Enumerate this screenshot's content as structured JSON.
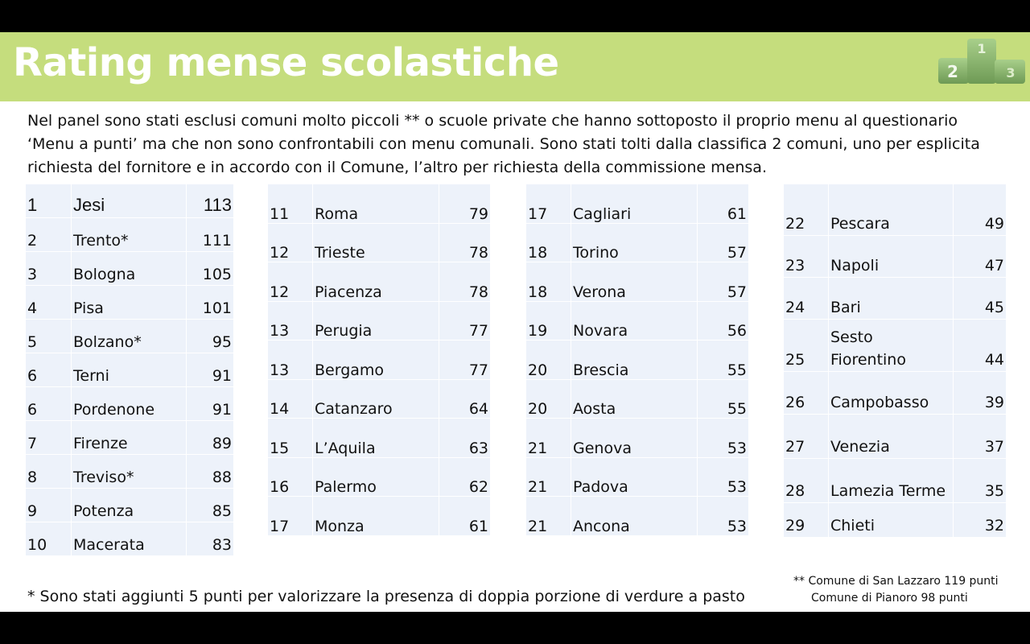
{
  "header": {
    "title": "Rating mense scolastiche",
    "podium": [
      "1",
      "2",
      "3"
    ]
  },
  "intro": "Nel panel sono stati esclusi comuni molto piccoli ** o scuole private che hanno sottoposto il proprio menu al questionario ‘Menu a punti’ ma  che non sono confrontabili con menu comunali. Sono stati tolti dalla classifica 2 comuni, uno per esplicita richiesta del fornitore e in accordo con il Comune, l’altro per richiesta della commissione mensa.",
  "tables": [
    [
      [
        "1",
        "Jesi",
        "113"
      ],
      [
        "2",
        "Trento*",
        "111"
      ],
      [
        "3",
        "Bologna",
        "105"
      ],
      [
        "4",
        "Pisa",
        "101"
      ],
      [
        "5",
        "Bolzano*",
        "95"
      ],
      [
        "6",
        "Terni",
        "91"
      ],
      [
        "6",
        "Pordenone",
        "91"
      ],
      [
        "7",
        "Firenze",
        "89"
      ],
      [
        "8",
        "Treviso*",
        "88"
      ],
      [
        "9",
        "Potenza",
        "85"
      ],
      [
        "10",
        "Macerata",
        "83"
      ]
    ],
    [
      [
        "11",
        "Roma",
        "79"
      ],
      [
        "12",
        "Trieste",
        "78"
      ],
      [
        "12",
        "Piacenza",
        "78"
      ],
      [
        "13",
        "Perugia",
        "77"
      ],
      [
        "13",
        "Bergamo",
        "77"
      ],
      [
        "14",
        "Catanzaro",
        "64"
      ],
      [
        "15",
        "L’Aquila",
        "63"
      ],
      [
        "16",
        "Palermo",
        "62"
      ],
      [
        "17",
        "Monza",
        "61"
      ]
    ],
    [
      [
        "17",
        "Cagliari",
        "61"
      ],
      [
        "18",
        "Torino",
        "57"
      ],
      [
        "18",
        "Verona",
        "57"
      ],
      [
        "19",
        "Novara",
        "56"
      ],
      [
        "20",
        "Brescia",
        "55"
      ],
      [
        "20",
        "Aosta",
        "55"
      ],
      [
        "21",
        "Genova",
        "53"
      ],
      [
        "21",
        "Padova",
        "53"
      ],
      [
        "21",
        "Ancona",
        "53"
      ]
    ],
    [
      [
        "22",
        "Pescara",
        "49"
      ],
      [
        "23",
        "Napoli",
        "47"
      ],
      [
        "24",
        "Bari",
        "45"
      ],
      [
        "25",
        "Sesto Fiorentino",
        "44"
      ],
      [
        "26",
        "Campobasso",
        "39"
      ],
      [
        "27",
        "Venezia",
        "37"
      ],
      [
        "28",
        "Lamezia Terme",
        "35"
      ],
      [
        "29",
        "Chieti",
        "32"
      ]
    ]
  ],
  "footnote": "* Sono stati aggiunti 5 punti per valorizzare la presenza di doppia porzione di verdure a pasto",
  "footnote2": {
    "line1": "** Comune di San Lazzaro 119 punti",
    "line2": "Comune di Pianoro 98 punti"
  }
}
